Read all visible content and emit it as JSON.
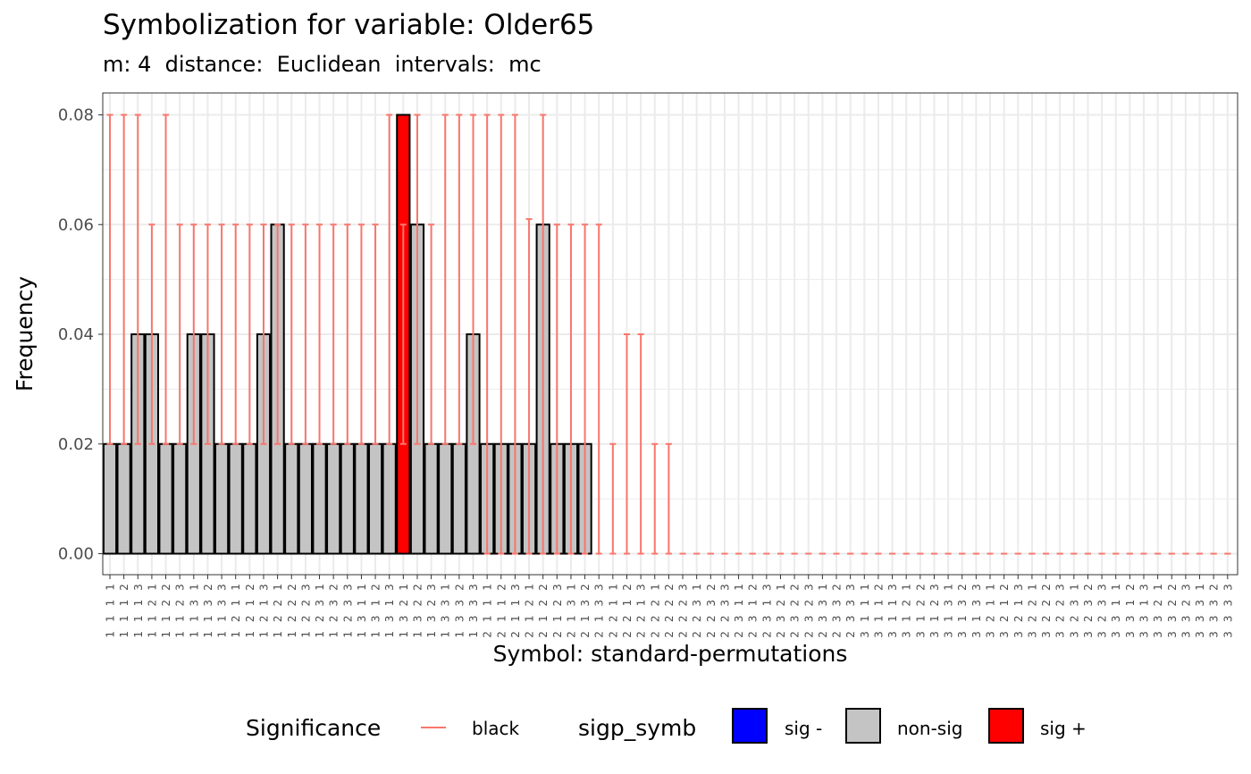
{
  "chart_data": {
    "type": "bar",
    "title": "Symbolization for variable: Older65",
    "subtitle": "m: 4  distance:  Euclidean  intervals:  mc",
    "xlabel": "Symbol: standard-permutations",
    "ylabel": "Frequency",
    "ylim": [
      0,
      0.08
    ],
    "yticks": [
      "0.00",
      "0.02",
      "0.04",
      "0.06",
      "0.08"
    ],
    "grid": true,
    "legend_position": "bottom",
    "categories": [
      "1111",
      "1112",
      "1113",
      "1121",
      "1122",
      "1123",
      "1131",
      "1132",
      "1133",
      "1211",
      "1212",
      "1213",
      "1221",
      "1222",
      "1223",
      "1231",
      "1232",
      "1233",
      "1311",
      "1312",
      "1313",
      "1321",
      "1322",
      "1323",
      "1331",
      "1332",
      "1333",
      "2111",
      "2112",
      "2113",
      "2121",
      "2122",
      "2123",
      "2131",
      "2132",
      "2133",
      "2211",
      "2212",
      "2213",
      "2221",
      "2222",
      "2223",
      "2231",
      "2232",
      "2233",
      "2311",
      "2312",
      "2313",
      "2321",
      "2322",
      "2323",
      "2331",
      "2332",
      "2333",
      "3111",
      "3112",
      "3113",
      "3121",
      "3122",
      "3123",
      "3131",
      "3132",
      "3133",
      "3211",
      "3212",
      "3213",
      "3221",
      "3222",
      "3223",
      "3231",
      "3232",
      "3233",
      "3311",
      "3312",
      "3313",
      "3321",
      "3322",
      "3323",
      "3331",
      "3332",
      "3333"
    ],
    "series": [
      {
        "name": "Frequency",
        "values": [
          0.02,
          0.02,
          0.04,
          0.04,
          0.02,
          0.02,
          0.04,
          0.04,
          0.02,
          0.02,
          0.02,
          0.04,
          0.06,
          0.02,
          0.02,
          0.02,
          0.02,
          0.02,
          0.02,
          0.02,
          0.02,
          0.08,
          0.06,
          0.02,
          0.02,
          0.02,
          0.04,
          0.02,
          0.02,
          0.02,
          0.02,
          0.06,
          0.02,
          0.02,
          0.02,
          0,
          0,
          0,
          0,
          0,
          0,
          0,
          0,
          0,
          0,
          0,
          0,
          0,
          0,
          0,
          0,
          0,
          0,
          0,
          0,
          0,
          0,
          0,
          0,
          0,
          0,
          0,
          0,
          0,
          0,
          0,
          0,
          0,
          0,
          0,
          0,
          0,
          0,
          0,
          0,
          0,
          0,
          0,
          0,
          0,
          0
        ],
        "significance": [
          "non-sig",
          "non-sig",
          "non-sig",
          "non-sig",
          "non-sig",
          "non-sig",
          "non-sig",
          "non-sig",
          "non-sig",
          "non-sig",
          "non-sig",
          "non-sig",
          "non-sig",
          "non-sig",
          "non-sig",
          "non-sig",
          "non-sig",
          "non-sig",
          "non-sig",
          "non-sig",
          "non-sig",
          "sig +",
          "non-sig",
          "non-sig",
          "non-sig",
          "non-sig",
          "non-sig",
          "non-sig",
          "non-sig",
          "non-sig",
          "non-sig",
          "non-sig",
          "non-sig",
          "non-sig",
          "non-sig",
          "non-sig",
          "non-sig",
          "non-sig",
          "non-sig",
          "non-sig",
          "non-sig",
          "non-sig",
          "non-sig",
          "non-sig",
          "non-sig",
          "non-sig",
          "non-sig",
          "non-sig",
          "non-sig",
          "non-sig",
          "non-sig",
          "non-sig",
          "non-sig",
          "non-sig",
          "non-sig",
          "non-sig",
          "non-sig",
          "non-sig",
          "non-sig",
          "non-sig",
          "non-sig",
          "non-sig",
          "non-sig",
          "non-sig",
          "non-sig",
          "non-sig",
          "non-sig",
          "non-sig",
          "non-sig",
          "non-sig",
          "non-sig",
          "non-sig",
          "non-sig",
          "non-sig",
          "non-sig",
          "non-sig",
          "non-sig",
          "non-sig",
          "non-sig",
          "non-sig",
          "non-sig"
        ]
      }
    ],
    "error_bars": {
      "lower": [
        0.02,
        0.02,
        0.02,
        0.02,
        0.02,
        0.02,
        0.02,
        0.02,
        0.02,
        0.02,
        0.02,
        0.02,
        0.02,
        0.02,
        0.02,
        0.02,
        0.02,
        0.02,
        0.02,
        0.02,
        0.02,
        0.02,
        0.02,
        0.02,
        0.02,
        0.02,
        0.02,
        0,
        0,
        0,
        0,
        0,
        0,
        0,
        0,
        0,
        0,
        0,
        0,
        0,
        0,
        0,
        0,
        0,
        0,
        0,
        0,
        0,
        0,
        0,
        0,
        0,
        0,
        0,
        0,
        0,
        0,
        0,
        0,
        0,
        0,
        0,
        0,
        0,
        0,
        0,
        0,
        0,
        0,
        0,
        0,
        0,
        0,
        0,
        0,
        0,
        0,
        0,
        0,
        0,
        0
      ],
      "upper": [
        0.08,
        0.08,
        0.08,
        0.06,
        0.08,
        0.06,
        0.06,
        0.06,
        0.06,
        0.06,
        0.06,
        0.06,
        0.06,
        0.06,
        0.06,
        0.06,
        0.06,
        0.06,
        0.06,
        0.06,
        0.08,
        0.06,
        0.08,
        0.06,
        0.08,
        0.08,
        0.08,
        0.08,
        0.08,
        0.08,
        0.061,
        0.08,
        0.06,
        0.06,
        0.06,
        0.06,
        0.02,
        0.04,
        0.04,
        0.02,
        0.02,
        0,
        0,
        0,
        0,
        0,
        0,
        0,
        0,
        0,
        0,
        0,
        0,
        0,
        0,
        0,
        0,
        0,
        0,
        0,
        0,
        0,
        0,
        0,
        0,
        0,
        0,
        0,
        0,
        0,
        0,
        0,
        0,
        0,
        0,
        0,
        0,
        0,
        0,
        0,
        0
      ]
    }
  },
  "legend": {
    "significance_title": "Significance",
    "significance_label": "black",
    "sigp_title": "sigp_symb",
    "items": [
      {
        "label": "sig -",
        "color": "#0000ff"
      },
      {
        "label": "non-sig",
        "color": "#c4c4c4"
      },
      {
        "label": "sig +",
        "color": "#ff0000"
      }
    ]
  },
  "colors": {
    "errorbar": "#f8766d",
    "grid": "#ebebeb",
    "axis_text": "#4d4d4d"
  }
}
